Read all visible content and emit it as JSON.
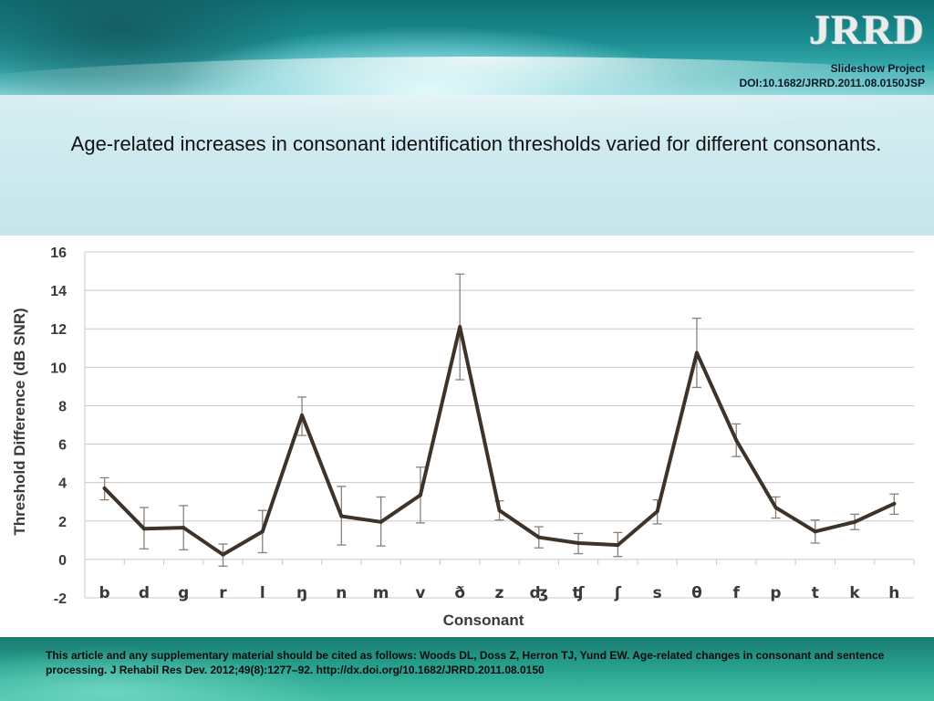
{
  "header": {
    "logo_text": "JRRD",
    "project_line": "Slideshow Project",
    "doi_line": "DOI:10.1682/JRRD.2011.08.0150JSP"
  },
  "slide": {
    "title": "Age-related increases in consonant identification thresholds varied for different consonants."
  },
  "footer": {
    "citation": "This article and any supplementary material should be cited as follows: Woods DL, Doss Z, Herron TJ, Yund EW. Age-related changes in consonant and sentence processing. J Rehabil Res Dev. 2012;49(8):1277–92. http://dx.doi.org/10.1682/JRRD.2011.08.0150"
  },
  "colors": {
    "line": "#3d3328",
    "error_bar": "#8a8078",
    "grid": "#c8c8c8",
    "axis_text": "#3a3a3a"
  },
  "chart_data": {
    "type": "line",
    "title": "",
    "xlabel": "Consonant",
    "ylabel": "Threshold Difference (dB SNR)",
    "ylim": [
      -2,
      16
    ],
    "yticks": [
      -2,
      0,
      2,
      4,
      6,
      8,
      10,
      12,
      14,
      16
    ],
    "grid": true,
    "categories": [
      "b",
      "d",
      "g",
      "r",
      "l",
      "ŋ",
      "n",
      "m",
      "v",
      "ð",
      "z",
      "ʤ",
      "ʧ",
      "ʃ",
      "s",
      "θ",
      "f",
      "p",
      "t",
      "k",
      "h"
    ],
    "series": [
      {
        "values": [
          3.7,
          1.6,
          1.65,
          0.25,
          1.45,
          7.5,
          2.25,
          1.95,
          3.35,
          12.1,
          2.55,
          1.15,
          0.85,
          0.75,
          2.5,
          10.75,
          6.2,
          2.7,
          1.45,
          1.95,
          2.9
        ],
        "error_low": [
          3.1,
          0.55,
          0.5,
          -0.35,
          0.35,
          6.45,
          0.75,
          0.7,
          1.9,
          9.35,
          2.05,
          0.6,
          0.3,
          0.15,
          1.85,
          8.95,
          5.35,
          2.15,
          0.85,
          1.55,
          2.35
        ],
        "error_high": [
          4.25,
          2.7,
          2.8,
          0.8,
          2.55,
          8.45,
          3.8,
          3.25,
          4.8,
          14.85,
          3.05,
          1.7,
          1.35,
          1.4,
          3.1,
          12.55,
          7.05,
          3.25,
          2.05,
          2.35,
          3.4
        ]
      }
    ]
  }
}
